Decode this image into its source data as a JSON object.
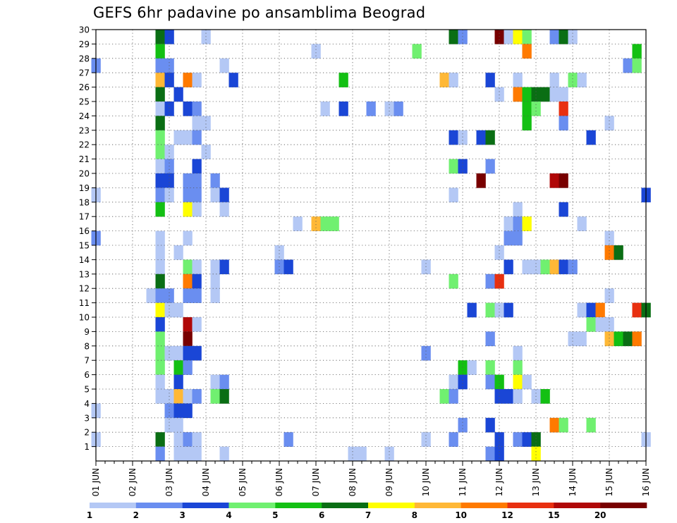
{
  "chart_data": {
    "type": "heatmap",
    "title": "GEFS 6hr padavine po ansamblima Beograd",
    "xlabel": "",
    "ylabel": "",
    "x_tick_labels": [
      "01 JUN",
      "02 JUN",
      "03 JUN",
      "04 JUN",
      "05 JUN",
      "06 JUN",
      "07 JUN",
      "08 JUN",
      "09 JUN",
      "10 JUN",
      "11 JUN",
      "12 JUN",
      "13 JUN",
      "14 JUN",
      "15 JUN",
      "16 JUN"
    ],
    "x_steps_per_day": 4,
    "xlim": [
      0,
      60
    ],
    "y_tick_labels": [
      "1",
      "2",
      "3",
      "4",
      "5",
      "6",
      "7",
      "8",
      "9",
      "10",
      "11",
      "12",
      "13",
      "14",
      "15",
      "16",
      "17",
      "18",
      "19",
      "20",
      "21",
      "22",
      "23",
      "24",
      "25",
      "26",
      "27",
      "28",
      "29",
      "30"
    ],
    "ylim": [
      0,
      30
    ],
    "grid": "dotted",
    "colorbar": {
      "labels": [
        "1",
        "2",
        "3",
        "4",
        "5",
        "6",
        "7",
        "8",
        "10",
        "12",
        "15",
        "20"
      ],
      "colors": [
        "#b4c8f5",
        "#6a8ef0",
        "#1a46d6",
        "#70f070",
        "#13c013",
        "#0a6e14",
        "#ffff00",
        "#ffb836",
        "#ff7a00",
        "#e83010",
        "#b00808",
        "#780000"
      ]
    },
    "cells": [
      [
        7,
        30,
        5
      ],
      [
        8,
        30,
        2
      ],
      [
        12,
        30,
        0
      ],
      [
        39,
        30,
        5
      ],
      [
        40,
        30,
        1
      ],
      [
        44,
        30,
        11
      ],
      [
        45,
        30,
        0
      ],
      [
        46,
        30,
        6
      ],
      [
        47,
        30,
        3
      ],
      [
        50,
        30,
        1
      ],
      [
        51,
        30,
        5
      ],
      [
        52,
        30,
        0
      ],
      [
        7,
        29,
        4
      ],
      [
        24,
        29,
        0
      ],
      [
        35,
        29,
        3
      ],
      [
        47,
        29,
        8
      ],
      [
        59,
        29,
        4
      ],
      [
        0,
        28,
        1
      ],
      [
        7,
        28,
        1
      ],
      [
        8,
        28,
        1
      ],
      [
        14,
        28,
        0
      ],
      [
        58,
        28,
        1
      ],
      [
        59,
        28,
        3
      ],
      [
        7,
        27,
        7
      ],
      [
        8,
        27,
        2
      ],
      [
        10,
        27,
        8
      ],
      [
        11,
        27,
        0
      ],
      [
        15,
        27,
        2
      ],
      [
        27,
        27,
        4
      ],
      [
        38,
        27,
        7
      ],
      [
        39,
        27,
        0
      ],
      [
        43,
        27,
        2
      ],
      [
        46,
        27,
        0
      ],
      [
        50,
        27,
        0
      ],
      [
        52,
        27,
        3
      ],
      [
        53,
        27,
        0
      ],
      [
        7,
        26,
        5
      ],
      [
        9,
        26,
        2
      ],
      [
        44,
        26,
        0
      ],
      [
        46,
        26,
        8
      ],
      [
        47,
        26,
        4
      ],
      [
        48,
        26,
        5
      ],
      [
        49,
        26,
        5
      ],
      [
        50,
        26,
        0
      ],
      [
        51,
        26,
        0
      ],
      [
        7,
        25,
        0
      ],
      [
        8,
        25,
        2
      ],
      [
        10,
        25,
        2
      ],
      [
        11,
        25,
        1
      ],
      [
        25,
        25,
        0
      ],
      [
        27,
        25,
        2
      ],
      [
        30,
        25,
        1
      ],
      [
        32,
        25,
        0
      ],
      [
        33,
        25,
        1
      ],
      [
        47,
        25,
        4
      ],
      [
        48,
        25,
        3
      ],
      [
        51,
        25,
        9
      ],
      [
        7,
        24,
        5
      ],
      [
        11,
        24,
        0
      ],
      [
        12,
        24,
        0
      ],
      [
        47,
        24,
        4
      ],
      [
        51,
        24,
        1
      ],
      [
        56,
        24,
        0
      ],
      [
        7,
        23,
        3
      ],
      [
        9,
        23,
        0
      ],
      [
        10,
        23,
        0
      ],
      [
        11,
        23,
        1
      ],
      [
        39,
        23,
        2
      ],
      [
        40,
        23,
        0
      ],
      [
        42,
        23,
        2
      ],
      [
        43,
        23,
        5
      ],
      [
        54,
        23,
        2
      ],
      [
        7,
        22,
        3
      ],
      [
        8,
        22,
        0
      ],
      [
        12,
        22,
        0
      ],
      [
        7,
        21,
        0
      ],
      [
        8,
        21,
        1
      ],
      [
        11,
        21,
        2
      ],
      [
        39,
        21,
        3
      ],
      [
        40,
        21,
        2
      ],
      [
        43,
        21,
        1
      ],
      [
        7,
        20,
        2
      ],
      [
        8,
        20,
        2
      ],
      [
        10,
        20,
        1
      ],
      [
        11,
        20,
        1
      ],
      [
        13,
        20,
        1
      ],
      [
        42,
        20,
        11
      ],
      [
        50,
        20,
        10
      ],
      [
        51,
        20,
        11
      ],
      [
        0,
        19,
        0
      ],
      [
        7,
        19,
        1
      ],
      [
        8,
        19,
        0
      ],
      [
        10,
        19,
        1
      ],
      [
        11,
        19,
        1
      ],
      [
        13,
        19,
        0
      ],
      [
        14,
        19,
        2
      ],
      [
        39,
        19,
        0
      ],
      [
        60,
        19,
        2
      ],
      [
        7,
        18,
        4
      ],
      [
        10,
        18,
        6
      ],
      [
        11,
        18,
        0
      ],
      [
        14,
        18,
        0
      ],
      [
        46,
        18,
        0
      ],
      [
        51,
        18,
        2
      ],
      [
        22,
        17,
        0
      ],
      [
        24,
        17,
        7
      ],
      [
        25,
        17,
        3
      ],
      [
        26,
        17,
        3
      ],
      [
        45,
        17,
        0
      ],
      [
        46,
        17,
        1
      ],
      [
        47,
        17,
        6
      ],
      [
        53,
        17,
        0
      ],
      [
        0,
        16,
        1
      ],
      [
        7,
        16,
        0
      ],
      [
        10,
        16,
        0
      ],
      [
        45,
        16,
        1
      ],
      [
        46,
        16,
        1
      ],
      [
        56,
        16,
        0
      ],
      [
        7,
        15,
        0
      ],
      [
        9,
        15,
        0
      ],
      [
        20,
        15,
        0
      ],
      [
        44,
        15,
        0
      ],
      [
        56,
        15,
        8
      ],
      [
        57,
        15,
        5
      ],
      [
        7,
        14,
        0
      ],
      [
        10,
        14,
        3
      ],
      [
        11,
        14,
        0
      ],
      [
        13,
        14,
        0
      ],
      [
        14,
        14,
        2
      ],
      [
        20,
        14,
        1
      ],
      [
        21,
        14,
        2
      ],
      [
        36,
        14,
        0
      ],
      [
        45,
        14,
        2
      ],
      [
        47,
        14,
        0
      ],
      [
        48,
        14,
        0
      ],
      [
        49,
        14,
        3
      ],
      [
        50,
        14,
        7
      ],
      [
        51,
        14,
        2
      ],
      [
        52,
        14,
        1
      ],
      [
        7,
        13,
        5
      ],
      [
        10,
        13,
        8
      ],
      [
        11,
        13,
        2
      ],
      [
        13,
        13,
        0
      ],
      [
        39,
        13,
        3
      ],
      [
        43,
        13,
        1
      ],
      [
        44,
        13,
        9
      ],
      [
        6,
        12,
        0
      ],
      [
        7,
        12,
        1
      ],
      [
        8,
        12,
        1
      ],
      [
        10,
        12,
        1
      ],
      [
        11,
        12,
        1
      ],
      [
        13,
        12,
        0
      ],
      [
        56,
        12,
        0
      ],
      [
        7,
        11,
        6
      ],
      [
        8,
        11,
        0
      ],
      [
        9,
        11,
        0
      ],
      [
        41,
        11,
        2
      ],
      [
        43,
        11,
        3
      ],
      [
        44,
        11,
        0
      ],
      [
        45,
        11,
        2
      ],
      [
        53,
        11,
        0
      ],
      [
        54,
        11,
        2
      ],
      [
        55,
        11,
        8
      ],
      [
        59,
        11,
        9
      ],
      [
        60,
        11,
        5
      ],
      [
        7,
        10,
        2
      ],
      [
        10,
        10,
        10
      ],
      [
        11,
        10,
        0
      ],
      [
        54,
        10,
        3
      ],
      [
        55,
        10,
        0
      ],
      [
        56,
        10,
        0
      ],
      [
        7,
        9,
        3
      ],
      [
        10,
        9,
        11
      ],
      [
        43,
        9,
        1
      ],
      [
        52,
        9,
        0
      ],
      [
        53,
        9,
        0
      ],
      [
        56,
        9,
        7
      ],
      [
        57,
        9,
        4
      ],
      [
        58,
        9,
        5
      ],
      [
        59,
        9,
        8
      ],
      [
        7,
        8,
        3
      ],
      [
        8,
        8,
        0
      ],
      [
        9,
        8,
        0
      ],
      [
        10,
        8,
        2
      ],
      [
        11,
        8,
        2
      ],
      [
        36,
        8,
        1
      ],
      [
        46,
        8,
        0
      ],
      [
        7,
        7,
        3
      ],
      [
        9,
        7,
        4
      ],
      [
        10,
        7,
        1
      ],
      [
        40,
        7,
        4
      ],
      [
        41,
        7,
        0
      ],
      [
        43,
        7,
        3
      ],
      [
        46,
        7,
        3
      ],
      [
        7,
        6,
        0
      ],
      [
        9,
        6,
        2
      ],
      [
        13,
        6,
        0
      ],
      [
        14,
        6,
        1
      ],
      [
        39,
        6,
        0
      ],
      [
        40,
        6,
        2
      ],
      [
        43,
        6,
        1
      ],
      [
        44,
        6,
        4
      ],
      [
        46,
        6,
        6
      ],
      [
        47,
        6,
        0
      ],
      [
        7,
        5,
        0
      ],
      [
        8,
        5,
        0
      ],
      [
        9,
        5,
        7
      ],
      [
        10,
        5,
        0
      ],
      [
        11,
        5,
        1
      ],
      [
        13,
        5,
        3
      ],
      [
        14,
        5,
        5
      ],
      [
        38,
        5,
        3
      ],
      [
        39,
        5,
        1
      ],
      [
        44,
        5,
        2
      ],
      [
        45,
        5,
        2
      ],
      [
        46,
        5,
        0
      ],
      [
        48,
        5,
        0
      ],
      [
        49,
        5,
        4
      ],
      [
        0,
        4,
        0
      ],
      [
        8,
        4,
        1
      ],
      [
        9,
        4,
        2
      ],
      [
        10,
        4,
        2
      ],
      [
        8,
        3,
        0
      ],
      [
        9,
        3,
        0
      ],
      [
        40,
        3,
        1
      ],
      [
        43,
        3,
        2
      ],
      [
        50,
        3,
        8
      ],
      [
        51,
        3,
        3
      ],
      [
        54,
        3,
        3
      ],
      [
        0,
        2,
        0
      ],
      [
        7,
        2,
        5
      ],
      [
        9,
        2,
        0
      ],
      [
        10,
        2,
        1
      ],
      [
        11,
        2,
        0
      ],
      [
        21,
        2,
        1
      ],
      [
        36,
        2,
        0
      ],
      [
        39,
        2,
        1
      ],
      [
        44,
        2,
        2
      ],
      [
        46,
        2,
        1
      ],
      [
        47,
        2,
        2
      ],
      [
        48,
        2,
        5
      ],
      [
        60,
        2,
        0
      ],
      [
        7,
        1,
        1
      ],
      [
        9,
        1,
        0
      ],
      [
        10,
        1,
        0
      ],
      [
        11,
        1,
        0
      ],
      [
        14,
        1,
        0
      ],
      [
        28,
        1,
        0
      ],
      [
        29,
        1,
        0
      ],
      [
        32,
        1,
        0
      ],
      [
        43,
        1,
        1
      ],
      [
        44,
        1,
        2
      ],
      [
        48,
        1,
        6
      ]
    ]
  }
}
